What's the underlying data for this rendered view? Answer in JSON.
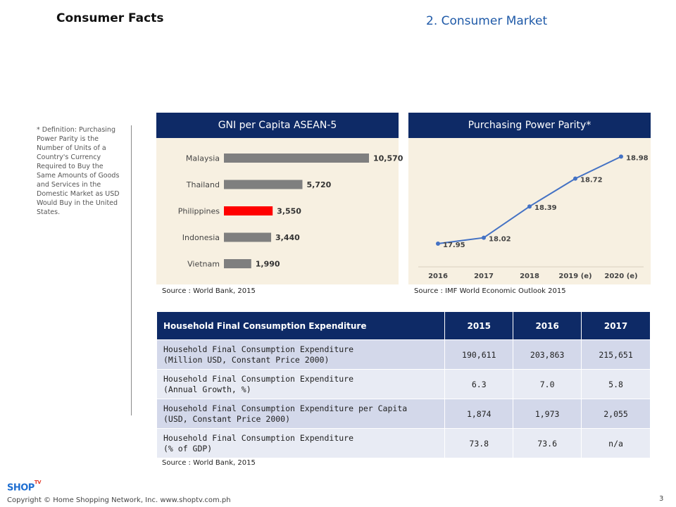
{
  "header": {
    "title": "Consumer Facts",
    "section": "2. Consumer Market"
  },
  "definition": "* Definition: Purchasing Power Parity is the Number of Units of a Country's Currency Required to Buy the Same Amounts of Goods and Services in the Domestic Market as USD Would Buy in the United States.",
  "colors": {
    "header_bg": "#0e2a66",
    "panel_bg": "#f7f0e1",
    "bar": "#7f7f7f",
    "bar_highlight": "#ff0000",
    "line": "#4472c4",
    "section_title": "#1f5aa8"
  },
  "chart_data": [
    {
      "type": "bar",
      "orientation": "horizontal",
      "title": "GNI per Capita ASEAN-5",
      "categories": [
        "Malaysia",
        "Thailand",
        "Philippines",
        "Indonesia",
        "Vietnam"
      ],
      "values": [
        10570,
        5720,
        3550,
        3440,
        1990
      ],
      "value_labels": [
        "10,570",
        "5,720",
        "3,550",
        "3,440",
        "1,990"
      ],
      "highlight": "Philippines",
      "source": "Source : World Bank, 2015"
    },
    {
      "type": "line",
      "title": "Purchasing Power Parity*",
      "categories": [
        "2016",
        "2017",
        "2018",
        "2019 (e)",
        "2020 (e)"
      ],
      "values": [
        17.95,
        18.02,
        18.39,
        18.72,
        18.98
      ],
      "value_labels": [
        "17.95",
        "18.02",
        "18.39",
        "18.72",
        "18.98"
      ],
      "ylim": [
        17.7,
        19.1
      ],
      "source": "Source : IMF World Economic Outlook 2015"
    }
  ],
  "table": {
    "headers": [
      "Household Final Consumption Expenditure",
      "2015",
      "2016",
      "2017"
    ],
    "rows": [
      {
        "label1": "Household Final Consumption Expenditure",
        "label2": "(Million USD, Constant Price 2000)",
        "values": [
          "190,611",
          "203,863",
          "215,651"
        ]
      },
      {
        "label1": "Household Final Consumption Expenditure",
        "label2": "(Annual Growth, %)",
        "values": [
          "6.3",
          "7.0",
          "5.8"
        ]
      },
      {
        "label1": "Household Final Consumption Expenditure per Capita",
        "label2": "(USD, Constant Price 2000)",
        "values": [
          "1,874",
          "1,973",
          "2,055"
        ]
      },
      {
        "label1": "Household Final Consumption Expenditure",
        "label2": "(% of GDP)",
        "values": [
          "73.8",
          "73.6",
          "n/a"
        ]
      }
    ],
    "source": "Source : World Bank, 2015"
  },
  "footer": {
    "logo": "SHOP",
    "logo_tv": "TV",
    "copyright": "Copyright © Home Shopping Network, Inc. www.shoptv.com.ph",
    "page_number": "3"
  }
}
